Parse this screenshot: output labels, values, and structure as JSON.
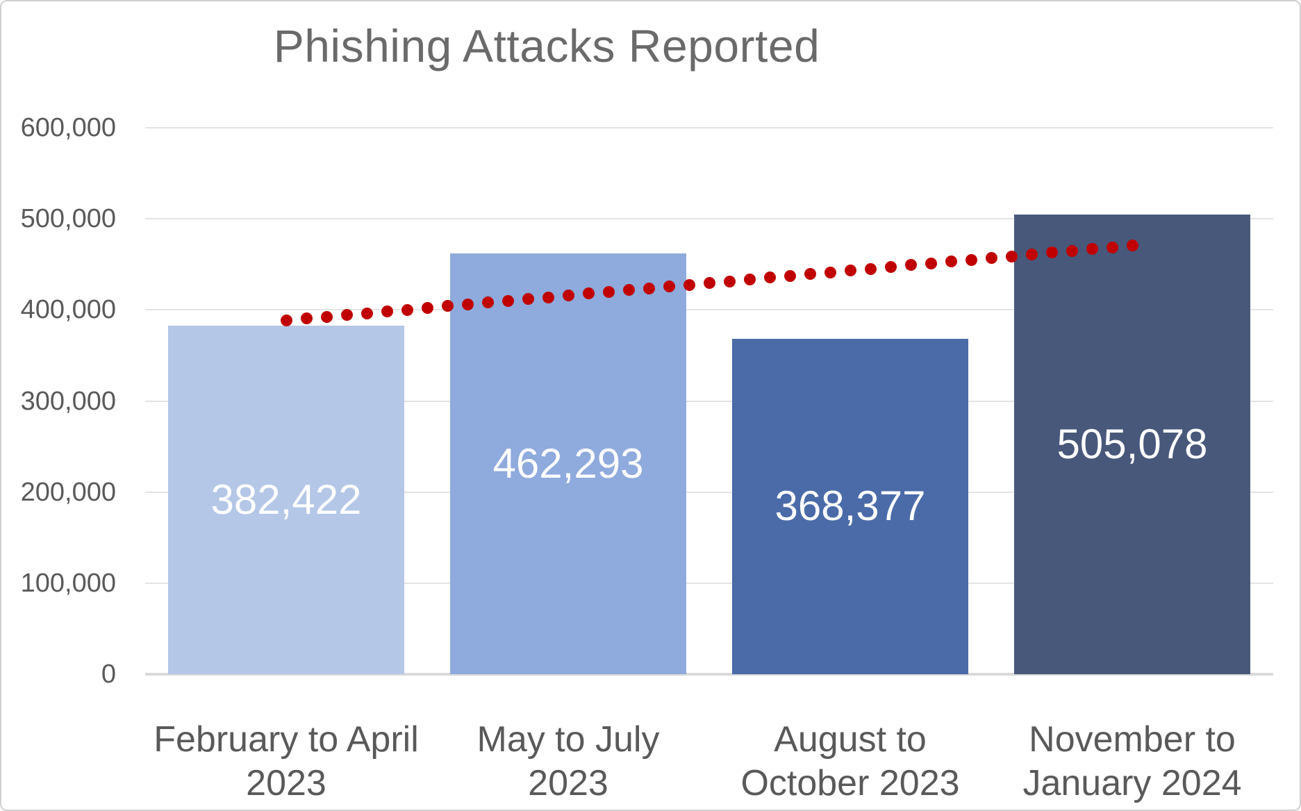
{
  "chart_data": {
    "type": "bar",
    "title": "Phishing Attacks Reported",
    "categories": [
      "February to April 2023",
      "May to July 2023",
      "August to October 2023",
      "November to January 2024"
    ],
    "category_lines": [
      [
        "February to April",
        "2023"
      ],
      [
        "May to July",
        "2023"
      ],
      [
        "August to",
        "October 2023"
      ],
      [
        "November to",
        "January 2024"
      ]
    ],
    "values": [
      382422,
      462293,
      368377,
      505078
    ],
    "value_labels": [
      "382,422",
      "462,293",
      "368,377",
      "505,078"
    ],
    "bar_colors": [
      "#b4c7e7",
      "#8faadc",
      "#4a6ba8",
      "#48587a"
    ],
    "value_label_color": "#ffffff",
    "xlabel": "",
    "ylabel": "",
    "ylim": [
      0,
      600000
    ],
    "grid": "horizontal",
    "legend": "none",
    "y_ticks": [
      {
        "value": 0,
        "label": "0"
      },
      {
        "value": 100000,
        "label": "100,000"
      },
      {
        "value": 200000,
        "label": "200,000"
      },
      {
        "value": 300000,
        "label": "300,000"
      },
      {
        "value": 400000,
        "label": "400,000"
      },
      {
        "value": 500000,
        "label": "500,000"
      },
      {
        "value": 600000,
        "label": "600,000"
      }
    ],
    "trendline": {
      "type": "linear",
      "style": "dotted",
      "color": "#c00000",
      "start_value": 388435,
      "end_value": 470650
    },
    "text_colors": {
      "title": "#6a6a6a",
      "axis_labels": "#595959"
    }
  }
}
